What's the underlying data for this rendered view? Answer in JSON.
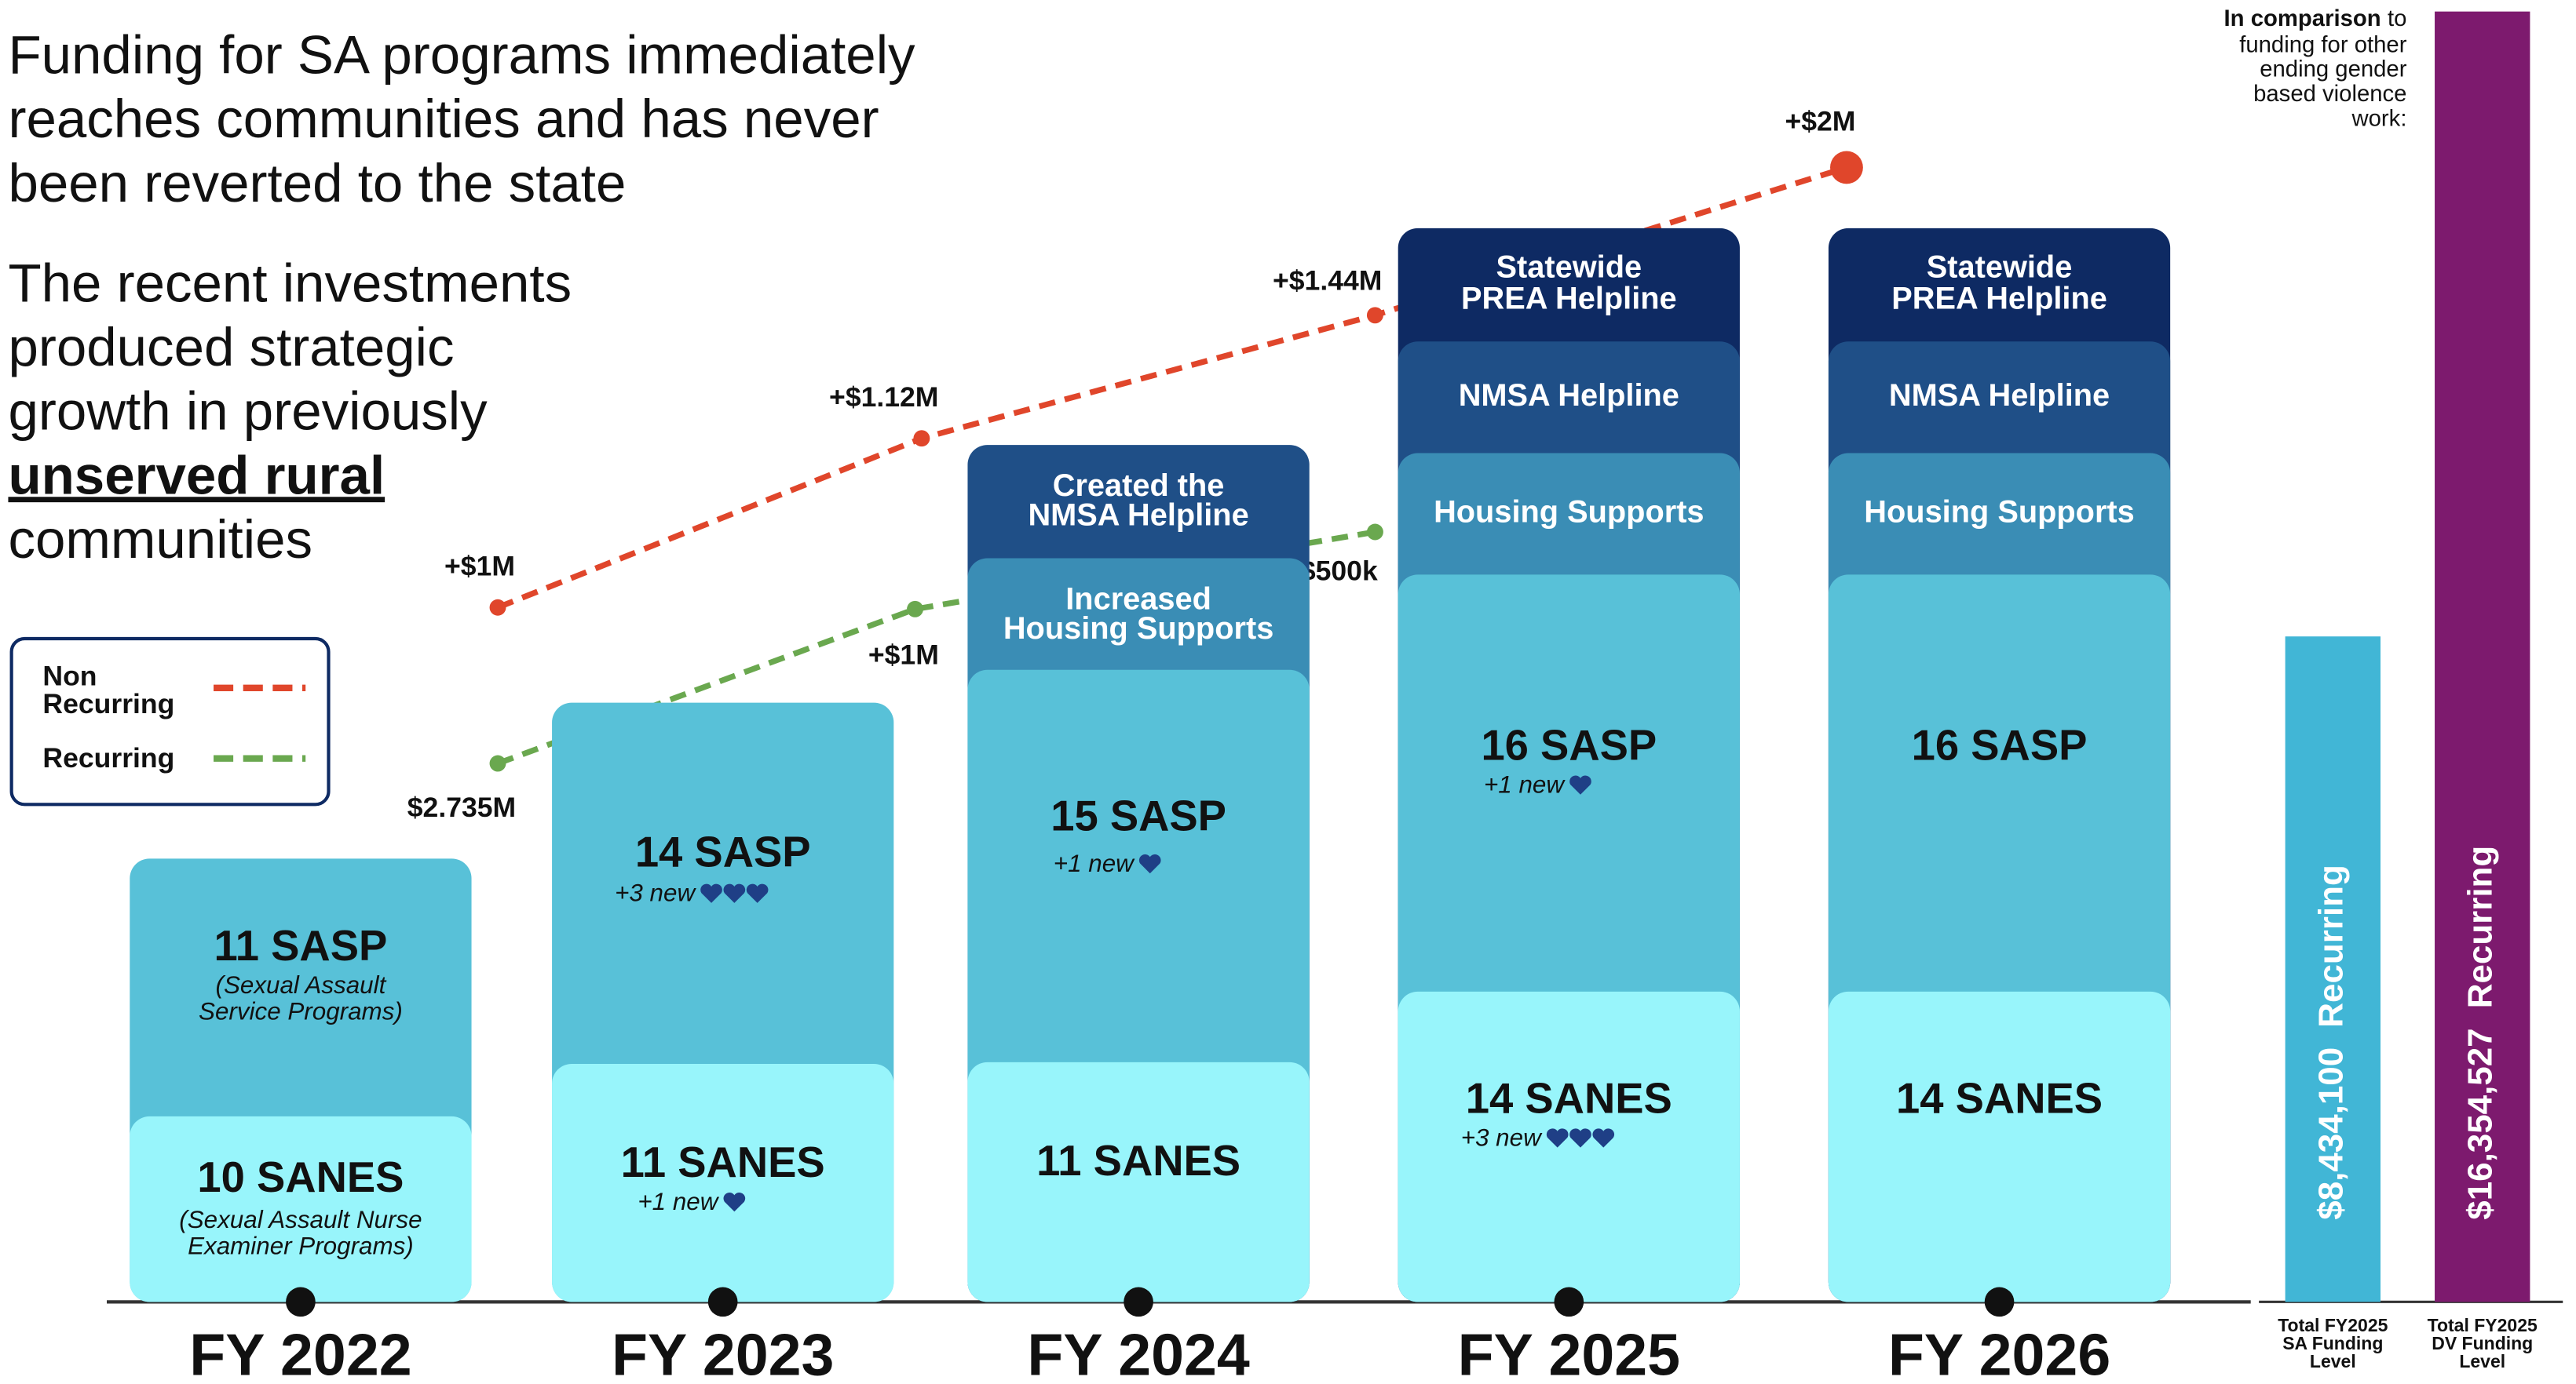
{
  "headline": {
    "lines": [
      "Funding for SA programs immediately",
      "reaches communities and has never",
      "been reverted to the state"
    ]
  },
  "subhead": {
    "lines": [
      "The recent investments",
      "produced strategic",
      "growth in previously"
    ],
    "emphasis": "unserved rural",
    "tail": "communities"
  },
  "legend": [
    {
      "lines": [
        "Non",
        "Recurring"
      ],
      "color": "#e0462b"
    },
    {
      "lines": [
        "Recurring"
      ],
      "color": "#6aa84f"
    }
  ],
  "years": [
    {
      "label": "FY 2022",
      "blocks": [
        {
          "title": [
            "10 SANES"
          ],
          "note": [
            "(Sexual Assault Nurse",
            "Examiner Programs)"
          ],
          "color": "#98f5fb"
        },
        {
          "title": [
            "11 SASP"
          ],
          "note": [
            "(Sexual Assault",
            "Service Programs)"
          ],
          "color": "#58c1d8"
        }
      ]
    },
    {
      "label": "FY 2023",
      "blocks": [
        {
          "title": [
            "11 SANES"
          ],
          "new": "+1 new",
          "color": "#98f5fb"
        },
        {
          "title": [
            "14 SASP"
          ],
          "new": "+3 new",
          "color": "#58c1d8"
        }
      ]
    },
    {
      "label": "FY 2024",
      "blocks": [
        {
          "title": [
            "11 SANES"
          ],
          "color": "#98f5fb"
        },
        {
          "title": [
            "15 SASP"
          ],
          "new": "+1 new",
          "color": "#58c1d8"
        },
        {
          "title": [
            "Increased",
            "Housing Supports"
          ],
          "color": "#3a8db5"
        },
        {
          "title": [
            "Created the",
            "NMSA Helpline"
          ],
          "color": "#1f4f87"
        }
      ]
    },
    {
      "label": "FY 2025",
      "blocks": [
        {
          "title": [
            "14 SANES"
          ],
          "new": "+3 new",
          "color": "#98f5fb"
        },
        {
          "title": [
            "16 SASP"
          ],
          "new": "+1 new",
          "color": "#58c1d8"
        },
        {
          "title": [
            "Housing Supports"
          ],
          "color": "#3a8db5"
        },
        {
          "title": [
            "NMSA Helpline"
          ],
          "color": "#1f4f87"
        },
        {
          "title": [
            "Statewide",
            "PREA Helpline"
          ],
          "color": "#0e2a63"
        }
      ]
    },
    {
      "label": "FY 2026",
      "blocks": [
        {
          "title": [
            "14 SANES"
          ],
          "color": "#98f5fb"
        },
        {
          "title": [
            "16 SASP"
          ],
          "color": "#58c1d8"
        },
        {
          "title": [
            "Housing Supports"
          ],
          "color": "#3a8db5"
        },
        {
          "title": [
            "NMSA Helpline"
          ],
          "color": "#1f4f87"
        },
        {
          "title": [
            "Statewide",
            "PREA Helpline"
          ],
          "color": "#0e2a63"
        }
      ]
    }
  ],
  "non_recurring": {
    "labels": [
      "+$1M",
      "+$1.12M",
      "+$1.44M",
      "+$2M"
    ]
  },
  "recurring": {
    "labels": [
      "$2.735M",
      "+$1M",
      "+$500k"
    ]
  },
  "comparison": {
    "note_lead": "In comparison",
    "note_lines": [
      "to",
      "funding for other",
      "ending gender",
      "based violence",
      "work:"
    ],
    "bars": [
      {
        "amount": 8434100,
        "amount_label": "$8,434,100",
        "tag": "Recurring",
        "caption": [
          "Total FY2025",
          "SA Funding",
          "Level"
        ],
        "color": "#41b6d6"
      },
      {
        "amount": 16354527,
        "amount_label": "$16,354,527",
        "tag": "Recurring",
        "caption": [
          "Total FY2025",
          "DV Funding",
          "Level"
        ],
        "color": "#7d1a6e"
      }
    ]
  }
}
